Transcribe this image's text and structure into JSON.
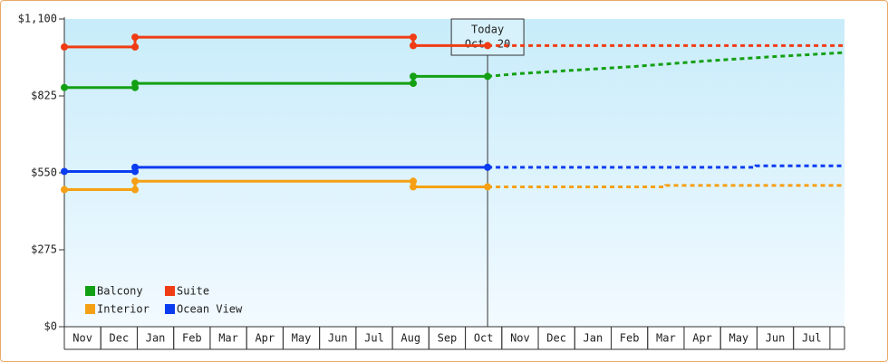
{
  "chart_data": {
    "type": "line",
    "xlim": [
      0,
      21.4
    ],
    "ylim": [
      0,
      1100
    ],
    "yticks": [
      {
        "value": 0,
        "label": "$0"
      },
      {
        "value": 275,
        "label": "$275"
      },
      {
        "value": 550,
        "label": "$550"
      },
      {
        "value": 825,
        "label": "$825"
      },
      {
        "value": 1100,
        "label": "$1,100"
      }
    ],
    "xticks": [
      {
        "value": 0.5,
        "label": "Nov"
      },
      {
        "value": 1.5,
        "label": "Dec"
      },
      {
        "value": 2.5,
        "label": "Jan"
      },
      {
        "value": 3.5,
        "label": "Feb"
      },
      {
        "value": 4.5,
        "label": "Mar"
      },
      {
        "value": 5.5,
        "label": "Apr"
      },
      {
        "value": 6.5,
        "label": "May"
      },
      {
        "value": 7.5,
        "label": "Jun"
      },
      {
        "value": 8.5,
        "label": "Jul"
      },
      {
        "value": 9.5,
        "label": "Aug"
      },
      {
        "value": 10.5,
        "label": "Sep"
      },
      {
        "value": 11.5,
        "label": "Oct"
      },
      {
        "value": 12.5,
        "label": "Nov"
      },
      {
        "value": 13.5,
        "label": "Dec"
      },
      {
        "value": 14.5,
        "label": "Jan"
      },
      {
        "value": 15.5,
        "label": "Feb"
      },
      {
        "value": 16.5,
        "label": "Mar"
      },
      {
        "value": 17.5,
        "label": "Apr"
      },
      {
        "value": 18.5,
        "label": "May"
      },
      {
        "value": 19.5,
        "label": "Jun"
      },
      {
        "value": 20.5,
        "label": "Jul"
      }
    ],
    "today": {
      "x": 11.61,
      "lines": [
        "Today",
        "Oct. 20"
      ]
    },
    "legend": "lower left",
    "series": [
      {
        "name": "Balcony",
        "color": "#14a014",
        "x": [
          0,
          1.94,
          1.94,
          9.57,
          9.57,
          11.61,
          12.5,
          15.6,
          17.6,
          19.4,
          21.4
        ],
        "values": [
          855,
          855,
          870,
          870,
          895,
          895,
          905,
          930,
          950,
          965,
          980
        ]
      },
      {
        "name": "Suite",
        "color": "#f03c14",
        "x": [
          0,
          1.94,
          1.94,
          9.57,
          9.57,
          11.61,
          21.4
        ],
        "values": [
          1000,
          1000,
          1035,
          1035,
          1005,
          1005,
          1005
        ]
      },
      {
        "name": "Interior",
        "color": "#f5a014",
        "x": [
          0,
          1.94,
          1.94,
          9.57,
          9.57,
          11.61,
          16.5,
          16.5,
          21.4
        ],
        "values": [
          490,
          490,
          520,
          520,
          500,
          500,
          500,
          505,
          505
        ]
      },
      {
        "name": "Ocean View",
        "color": "#0a3cf0",
        "x": [
          0,
          1.94,
          1.94,
          11.61,
          18.97,
          18.97,
          21.4
        ],
        "values": [
          555,
          555,
          570,
          570,
          570,
          575,
          575
        ]
      }
    ]
  }
}
